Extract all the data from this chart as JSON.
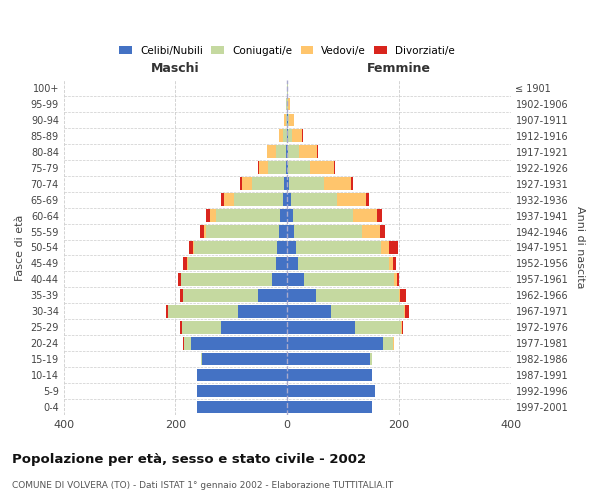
{
  "age_groups": [
    "100+",
    "95-99",
    "90-94",
    "85-89",
    "80-84",
    "75-79",
    "70-74",
    "65-69",
    "60-64",
    "55-59",
    "50-54",
    "45-49",
    "40-44",
    "35-39",
    "30-34",
    "25-29",
    "20-24",
    "15-19",
    "10-14",
    "5-9",
    "0-4"
  ],
  "birth_years": [
    "≤ 1901",
    "1902-1906",
    "1907-1911",
    "1912-1916",
    "1917-1921",
    "1922-1926",
    "1927-1931",
    "1932-1936",
    "1937-1941",
    "1942-1946",
    "1947-1951",
    "1952-1956",
    "1957-1961",
    "1962-1966",
    "1967-1971",
    "1972-1976",
    "1977-1981",
    "1982-1986",
    "1987-1991",
    "1992-1996",
    "1997-2001"
  ],
  "maschi": {
    "celibi": [
      0,
      0,
      0,
      1,
      2,
      3,
      5,
      8,
      12,
      15,
      18,
      20,
      28,
      52,
      88,
      118,
      172,
      152,
      162,
      162,
      162
    ],
    "coniugati": [
      1,
      2,
      3,
      7,
      18,
      32,
      58,
      88,
      115,
      130,
      148,
      158,
      162,
      135,
      125,
      70,
      12,
      3,
      0,
      0,
      0
    ],
    "vedovi": [
      0,
      1,
      3,
      7,
      16,
      16,
      18,
      18,
      12,
      4,
      2,
      1,
      1,
      0,
      0,
      0,
      0,
      0,
      0,
      0,
      0
    ],
    "divorziati": [
      0,
      0,
      0,
      0,
      1,
      2,
      4,
      5,
      7,
      8,
      8,
      7,
      5,
      5,
      4,
      4,
      2,
      0,
      0,
      0,
      0
    ]
  },
  "femmine": {
    "nubili": [
      0,
      0,
      1,
      1,
      2,
      2,
      4,
      7,
      10,
      12,
      16,
      20,
      30,
      52,
      78,
      122,
      172,
      148,
      152,
      158,
      152
    ],
    "coniugate": [
      1,
      2,
      3,
      8,
      20,
      38,
      62,
      82,
      108,
      122,
      152,
      162,
      162,
      148,
      132,
      82,
      18,
      3,
      0,
      0,
      0
    ],
    "vedove": [
      0,
      3,
      8,
      18,
      32,
      43,
      48,
      52,
      43,
      32,
      14,
      8,
      4,
      2,
      1,
      1,
      1,
      0,
      0,
      0,
      0
    ],
    "divorziate": [
      0,
      0,
      0,
      1,
      1,
      2,
      3,
      5,
      8,
      9,
      16,
      5,
      5,
      11,
      7,
      3,
      1,
      0,
      0,
      0,
      0
    ]
  },
  "colors": {
    "celibi_nubili": "#4472C4",
    "coniugati": "#c5d9a0",
    "vedovi": "#ffc56c",
    "divorziati": "#d9251d"
  },
  "title": "Popolazione per età, sesso e stato civile - 2002",
  "subtitle": "COMUNE DI VOLVERA (TO) - Dati ISTAT 1° gennaio 2002 - Elaborazione TUTTITALIA.IT",
  "xlabel_left": "Maschi",
  "xlabel_right": "Femmine",
  "ylabel_left": "Fasce di età",
  "ylabel_right": "Anni di nascita",
  "xlim": 400,
  "background_color": "#ffffff",
  "grid_color": "#cccccc",
  "legend_labels": [
    "Celibi/Nubili",
    "Coniugati/e",
    "Vedovi/e",
    "Divorziati/e"
  ]
}
